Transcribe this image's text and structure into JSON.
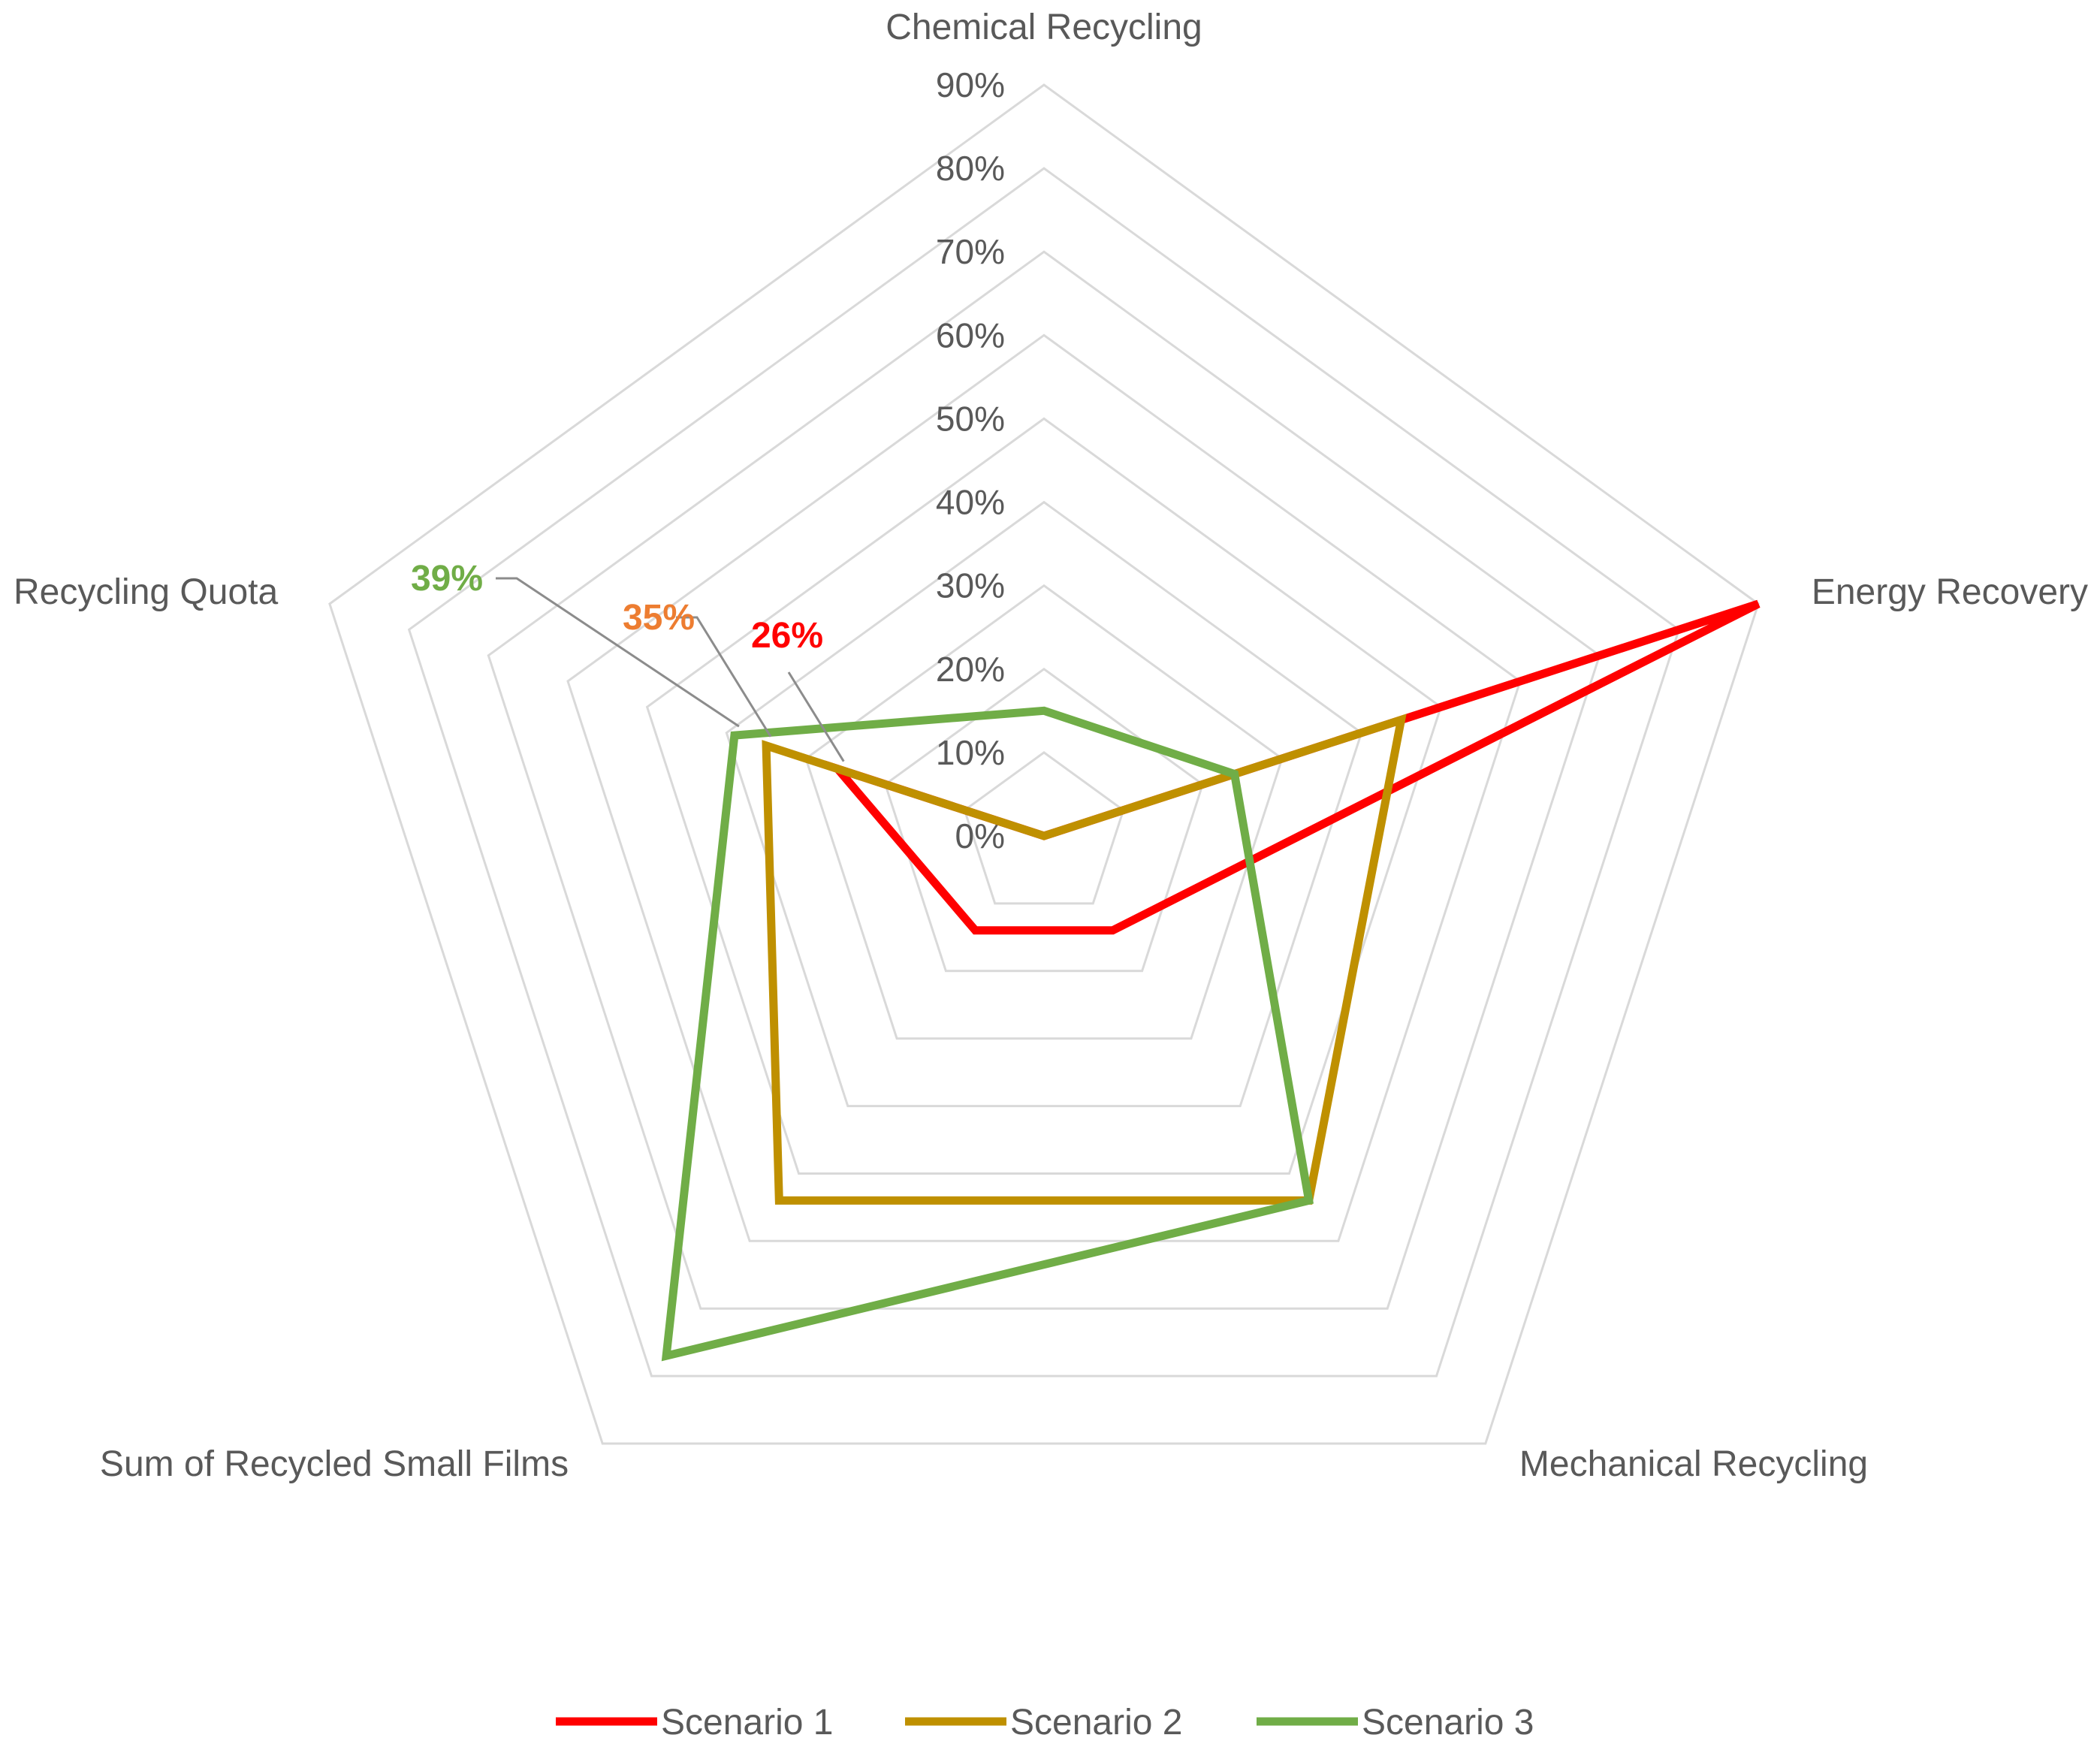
{
  "chart_data": {
    "type": "radar",
    "categories": [
      "Chemical Recycling",
      "Energy Recovery",
      "Mechanical Recycling",
      "Sum of Recycled Small Films",
      "Recycling Quota"
    ],
    "r_ticks": [
      "0%",
      "10%",
      "20%",
      "30%",
      "40%",
      "50%",
      "60%",
      "70%",
      "80%",
      "90%"
    ],
    "r_max": 90,
    "grid": true,
    "legend_position": "bottom",
    "series": [
      {
        "name": "Scenario 1",
        "color": "#ff0000",
        "values": [
          0,
          90,
          14,
          14,
          26
        ]
      },
      {
        "name": "Scenario 2",
        "color": "#bf9000",
        "values": [
          0,
          45,
          54,
          54,
          35
        ]
      },
      {
        "name": "Scenario 3",
        "color": "#70ad47",
        "values": [
          15,
          24,
          54,
          77,
          39
        ]
      }
    ],
    "data_labels": [
      {
        "series": 0,
        "category": 4,
        "text": "26%",
        "color": "#ff0000"
      },
      {
        "series": 1,
        "category": 4,
        "text": "35%",
        "color": "#ed7d31"
      },
      {
        "series": 2,
        "category": 4,
        "text": "39%",
        "color": "#70ad47"
      }
    ]
  }
}
